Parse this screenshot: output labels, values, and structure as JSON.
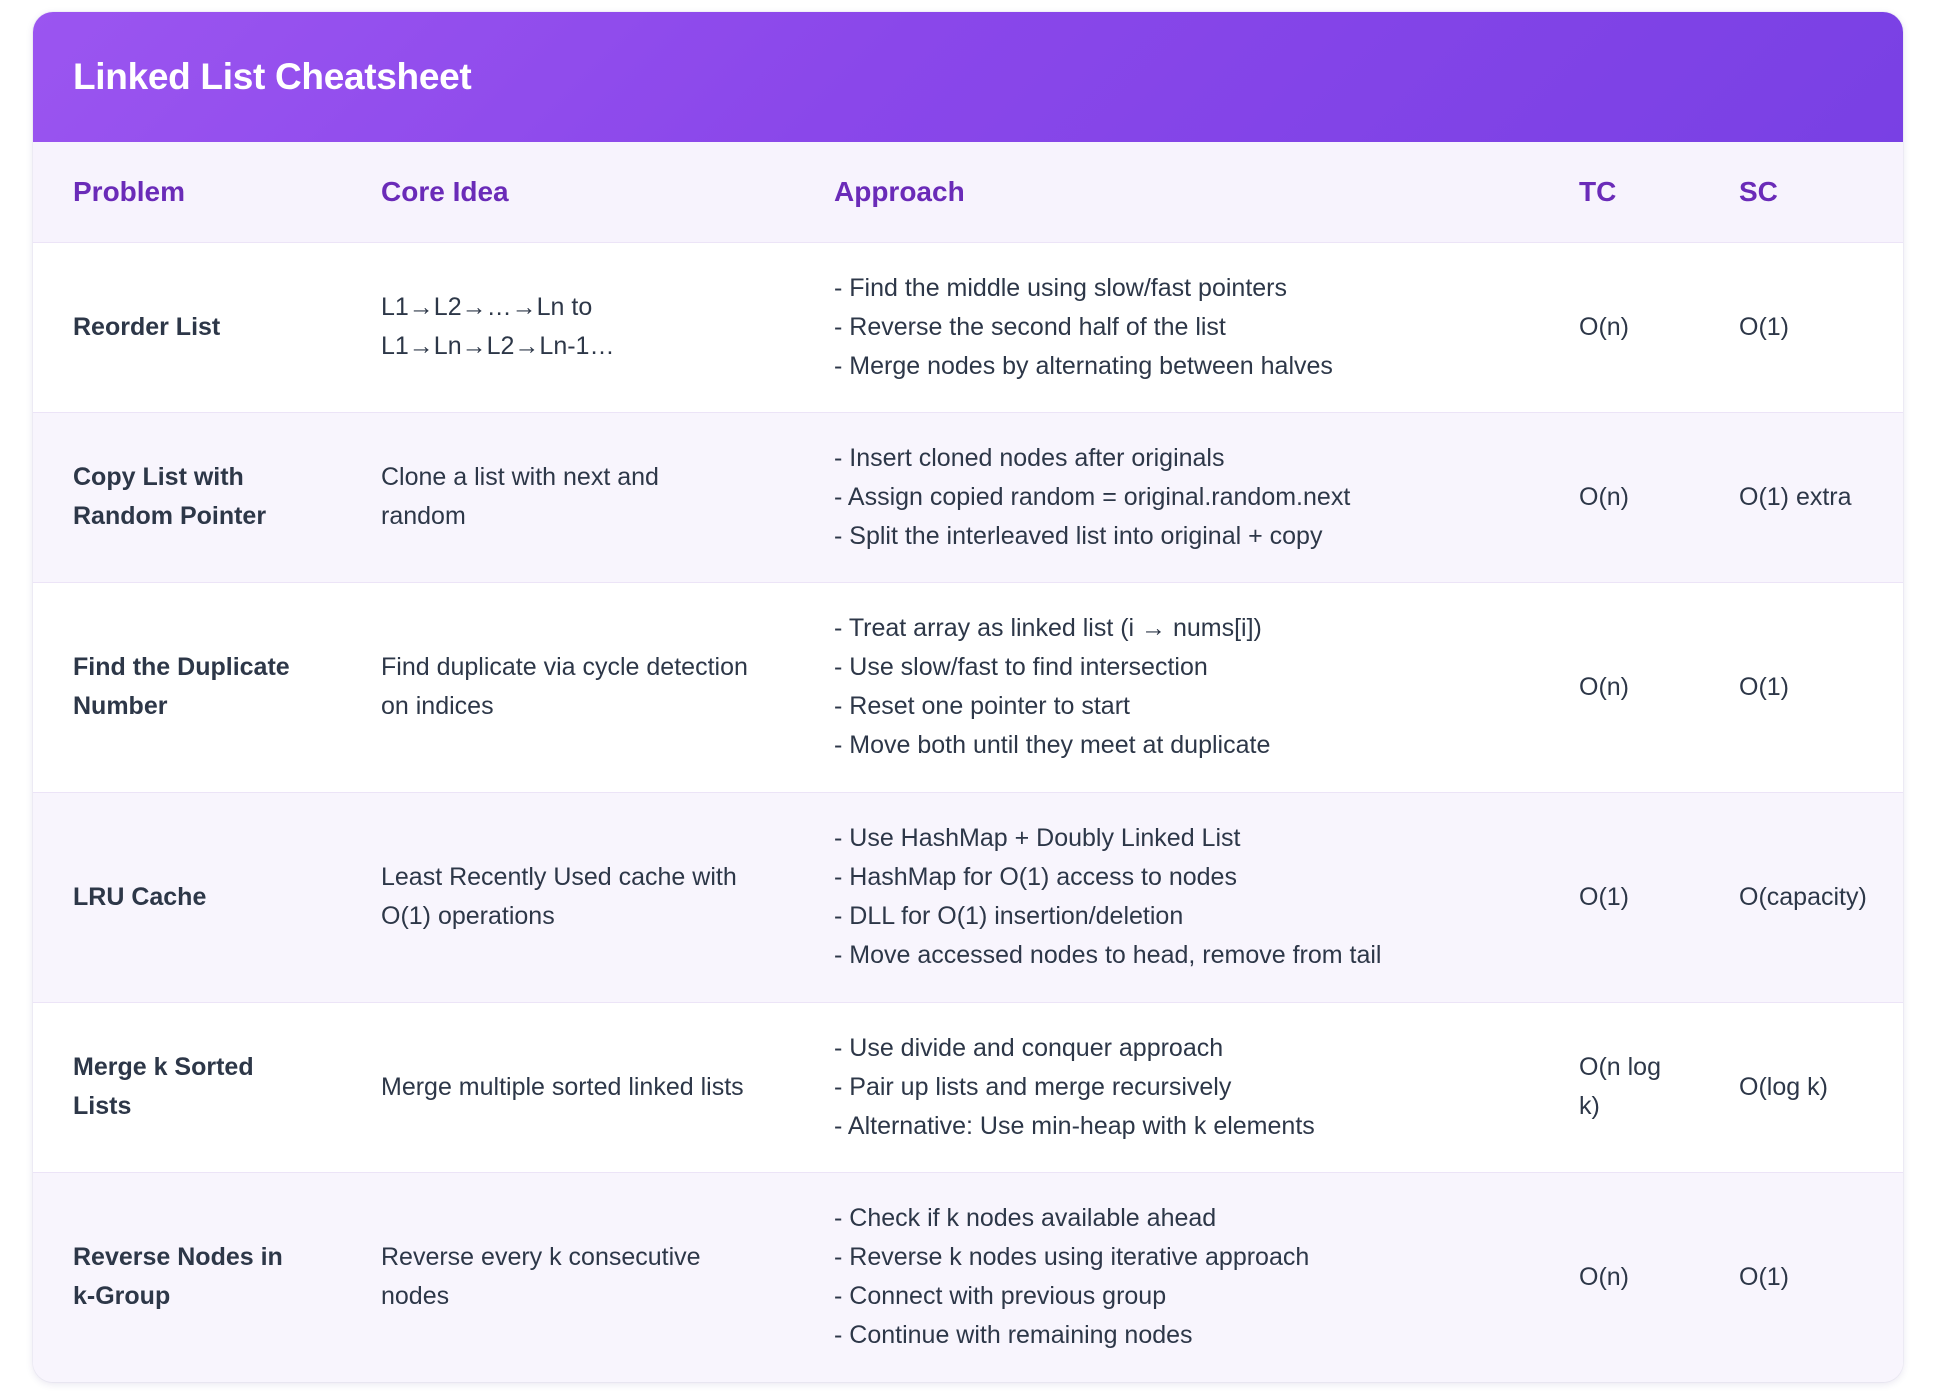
{
  "title": "Linked List Cheatsheet",
  "colors": {
    "header_gradient_start": "#9b55f0",
    "header_gradient_end": "#7940e4",
    "column_header_text": "#6a2bb8",
    "zebra_row": "#f8f5fd"
  },
  "columns": {
    "problem": "Problem",
    "core_idea": "Core Idea",
    "approach": "Approach",
    "tc": "TC",
    "sc": "SC"
  },
  "rows": [
    {
      "problem": "Reorder List",
      "core_idea": "L1→L2→…→Ln to L1→Ln→L2→Ln-1…",
      "approach": [
        "- Find the middle using slow/fast pointers",
        "- Reverse the second half of the list",
        "- Merge nodes by alternating between halves"
      ],
      "tc": "O(n)",
      "sc": "O(1)"
    },
    {
      "problem": "Copy List with Random Pointer",
      "core_idea": "Clone a list with next and random",
      "approach": [
        "- Insert cloned nodes after originals",
        "- Assign copied random = original.random.next",
        "- Split the interleaved list into original + copy"
      ],
      "tc": "O(n)",
      "sc": "O(1) extra"
    },
    {
      "problem": "Find the Duplicate Number",
      "core_idea": "Find duplicate via cycle detection on indices",
      "approach": [
        "- Treat array as linked list (i → nums[i])",
        "- Use slow/fast to find intersection",
        "- Reset one pointer to start",
        "- Move both until they meet at duplicate"
      ],
      "tc": "O(n)",
      "sc": "O(1)"
    },
    {
      "problem": "LRU Cache",
      "core_idea": "Least Recently Used cache with O(1) operations",
      "approach": [
        "- Use HashMap + Doubly Linked List",
        "- HashMap for O(1) access to nodes",
        "- DLL for O(1) insertion/deletion",
        "- Move accessed nodes to head, remove from tail"
      ],
      "tc": "O(1)",
      "sc": "O(capacity)"
    },
    {
      "problem": "Merge k Sorted Lists",
      "core_idea": "Merge multiple sorted linked lists",
      "approach": [
        "- Use divide and conquer approach",
        "- Pair up lists and merge recursively",
        "- Alternative: Use min-heap with k elements"
      ],
      "tc": "O(n log k)",
      "sc": "O(log k)"
    },
    {
      "problem": "Reverse Nodes in k-Group",
      "core_idea": "Reverse every k consecutive nodes",
      "approach": [
        "- Check if k nodes available ahead",
        "- Reverse k nodes using iterative approach",
        "- Connect with previous group",
        "- Continue with remaining nodes"
      ],
      "tc": "O(n)",
      "sc": "O(1)"
    }
  ]
}
